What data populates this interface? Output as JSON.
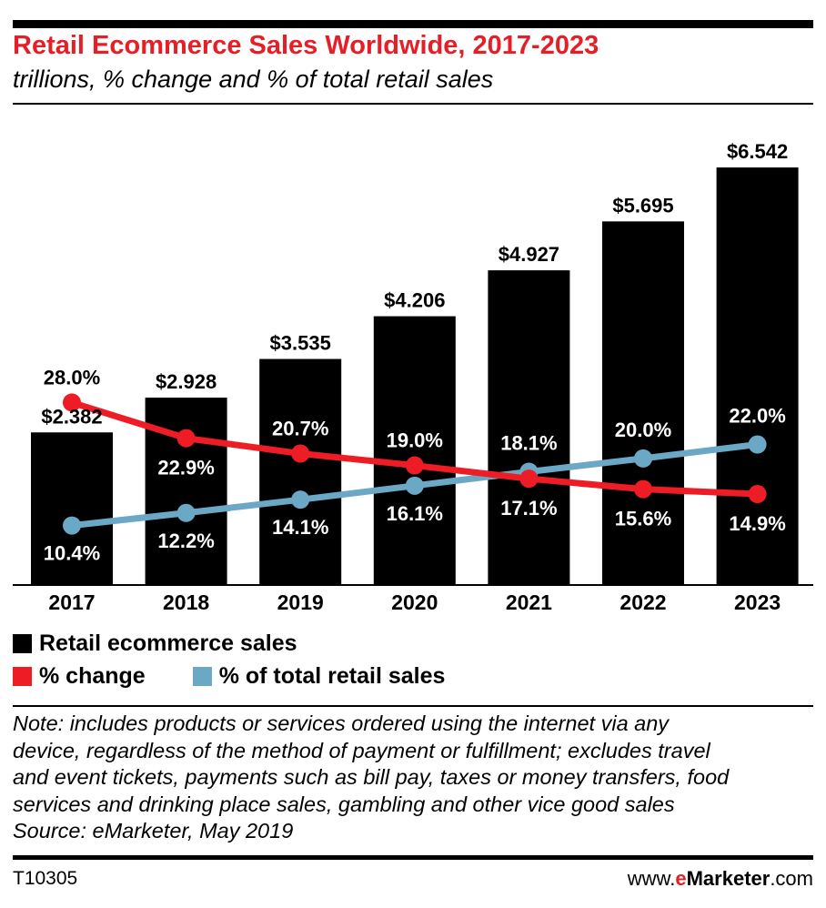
{
  "header": {
    "title": "Retail Ecommerce Sales Worldwide, 2017-2023",
    "subtitle": "trillions, % change and % of total retail sales"
  },
  "colors": {
    "bars": "#000000",
    "change": "#ee1c25",
    "share": "#6aa8c6",
    "brand": "#e61e25"
  },
  "chart_data": {
    "type": "bar",
    "title": "Retail Ecommerce Sales Worldwide, 2017-2023",
    "categories": [
      "2017",
      "2018",
      "2019",
      "2020",
      "2021",
      "2022",
      "2023"
    ],
    "series": [
      {
        "name": "Retail ecommerce sales",
        "type": "bar",
        "unit": "trillions",
        "values": [
          2.382,
          2.928,
          3.535,
          4.206,
          4.927,
          5.695,
          6.542
        ],
        "labels": [
          "$2.382",
          "$2.928",
          "$3.535",
          "$4.206",
          "$4.927",
          "$5.695",
          "$6.542"
        ]
      },
      {
        "name": "% change",
        "type": "line",
        "values": [
          28.0,
          22.9,
          20.7,
          19.0,
          17.1,
          15.6,
          14.9
        ],
        "labels": [
          "28.0%",
          "22.9%",
          "20.7%",
          "19.0%",
          "17.1%",
          "15.6%",
          "14.9%"
        ]
      },
      {
        "name": "% of total retail sales",
        "type": "line",
        "values": [
          10.4,
          12.2,
          14.1,
          16.1,
          18.1,
          20.0,
          22.0
        ],
        "labels": [
          "10.4%",
          "12.2%",
          "14.1%",
          "16.1%",
          "18.1%",
          "20.0%",
          "22.0%"
        ]
      }
    ],
    "xlabel": "",
    "ylabel": "",
    "legend": "bottom"
  },
  "legend": {
    "sales": "Retail ecommerce sales",
    "change": "% change",
    "share": "% of total retail sales"
  },
  "note": {
    "line1": "Note: includes products or services ordered using the internet via any",
    "line2": "device, regardless of the method of payment or fulfillment; excludes travel",
    "line3": "and event tickets, payments such as bill pay, taxes or money transfers, food",
    "line4": "services and drinking place sales, gambling and other vice good sales",
    "source": "Source: eMarketer, May 2019"
  },
  "footer": {
    "code": "T10305",
    "brand_prefix": "www.",
    "brand_e": "e",
    "brand_name": "Marketer",
    "brand_suffix": ".com"
  }
}
